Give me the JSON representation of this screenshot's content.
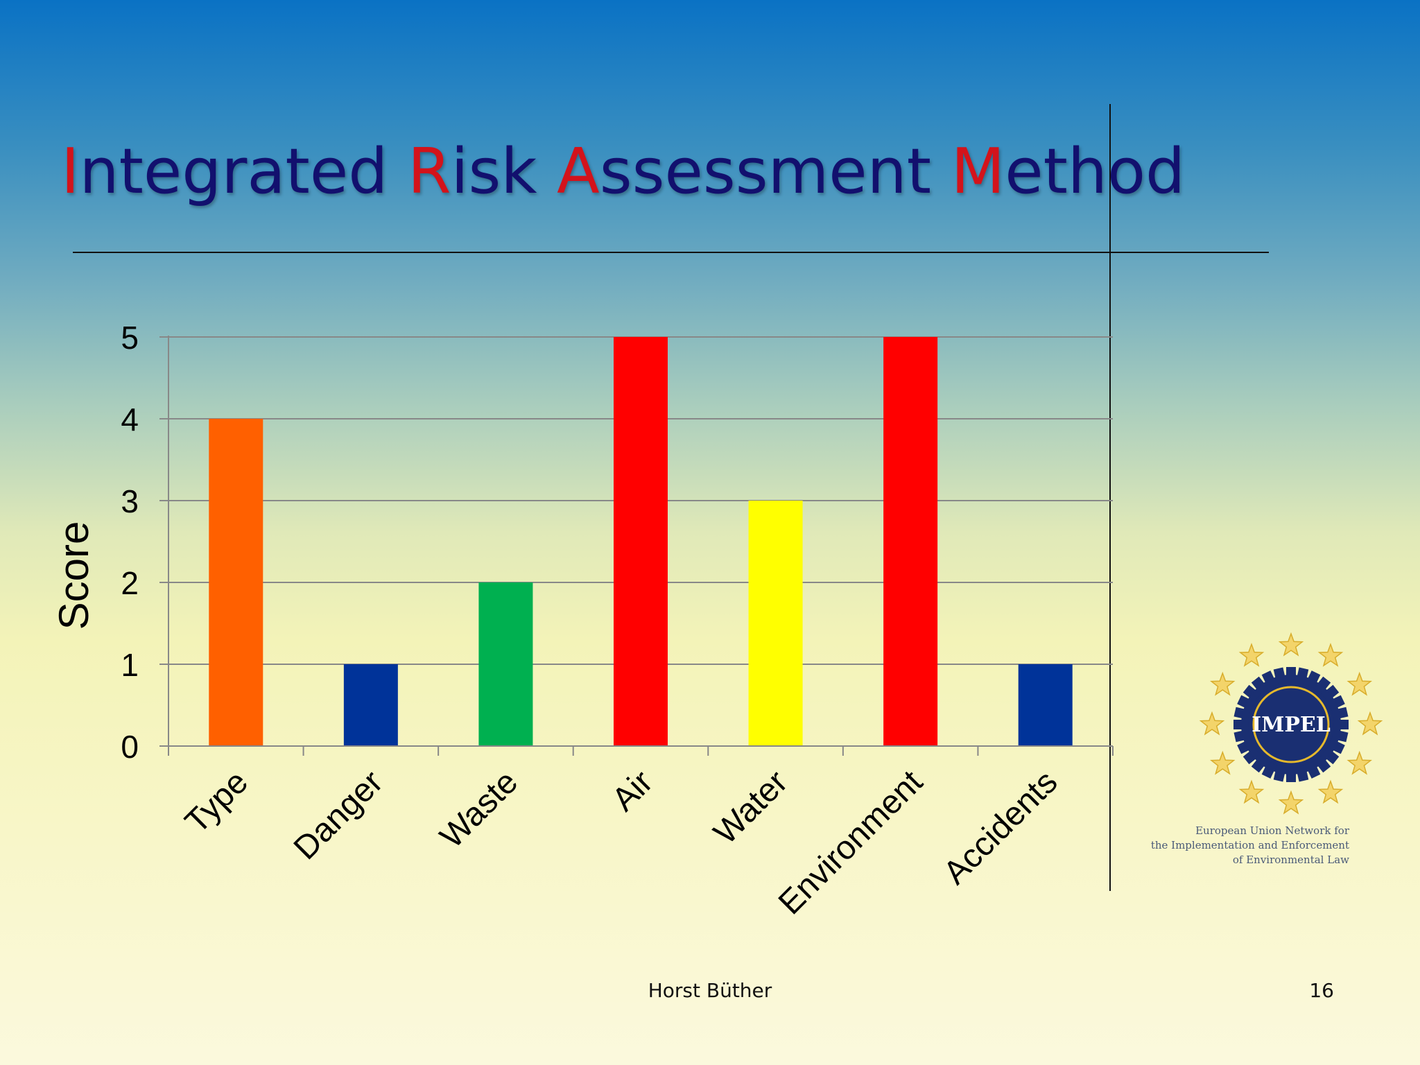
{
  "slide": {
    "title_parts": [
      {
        "text": "I",
        "highlight": true
      },
      {
        "text": "ntegrated ",
        "highlight": false
      },
      {
        "text": "R",
        "highlight": true
      },
      {
        "text": "isk ",
        "highlight": false
      },
      {
        "text": "A",
        "highlight": true
      },
      {
        "text": "ssessment ",
        "highlight": false
      },
      {
        "text": "M",
        "highlight": true
      },
      {
        "text": "ethod",
        "highlight": false
      }
    ],
    "footer_author": "Horst Büther",
    "page_number": "16"
  },
  "logo": {
    "label": "IMPEL",
    "caption_lines": [
      "European Union Network for",
      "the Implementation and Enforcement",
      "of Environmental Law"
    ]
  },
  "chart_data": {
    "type": "bar",
    "categories": [
      "Type",
      "Danger",
      "Waste",
      "Air",
      "Water",
      "Environment",
      "Accidents"
    ],
    "values": [
      4,
      1,
      2,
      5,
      3,
      5,
      1
    ],
    "colors": [
      "#ff6000",
      "#003399",
      "#00b050",
      "#ff0000",
      "#ffff00",
      "#ff0000",
      "#003399"
    ],
    "ylabel": "Score",
    "xlabel": "",
    "ylim": [
      0,
      5
    ],
    "yticks": [
      0,
      1,
      2,
      3,
      4,
      5
    ],
    "grid": true,
    "legend": "none"
  }
}
